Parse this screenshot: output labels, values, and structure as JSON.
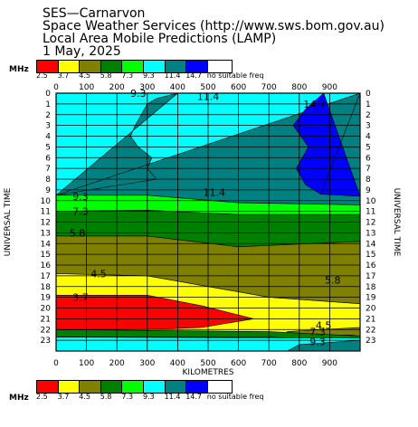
{
  "header": {
    "line1": "SES—Carnarvon",
    "line2": "Space Weather Services (http://www.sws.bom.gov.au)",
    "line3": "Local Area Mobile Predictions (LAMP)",
    "line4": "1 May, 2025"
  },
  "legend": {
    "unit": "MHz",
    "colors": [
      "#ff0000",
      "#ffff00",
      "#808000",
      "#008000",
      "#00ff00",
      "#00ffff",
      "#008080",
      "#0000ff",
      "#ffffff"
    ],
    "labels": [
      "2.5",
      "3.7",
      "4.5",
      "5.8",
      "7.3",
      "9.3",
      "11.4",
      "14.7",
      "no suitable freq"
    ]
  },
  "chart_data": {
    "type": "heatmap",
    "xlabel": "KILOMETRES",
    "ylabel": "UNIVERSAL TIME",
    "xlim": [
      0,
      1000
    ],
    "ylim": [
      0,
      24
    ],
    "x_ticks": [
      0,
      100,
      200,
      300,
      400,
      500,
      600,
      700,
      800,
      900
    ],
    "y_ticks": [
      0,
      1,
      2,
      3,
      4,
      5,
      6,
      7,
      8,
      9,
      10,
      11,
      12,
      13,
      14,
      15,
      16,
      17,
      18,
      19,
      20,
      21,
      22,
      23
    ],
    "grid": true,
    "bands": [
      {
        "level": "9.3",
        "color": "#00ffff",
        "top": [
          [
            0,
            0
          ],
          [
            1000,
            0
          ]
        ],
        "bottom": [
          [
            0,
            24
          ],
          [
            1000,
            24
          ]
        ]
      },
      {
        "level": "11.4",
        "color": "#008080",
        "top": [
          [
            400,
            0
          ],
          [
            1000,
            0
          ]
        ],
        "bottom": [
          [
            0,
            9.5
          ],
          [
            300,
            9.5
          ],
          [
            600,
            10.2
          ],
          [
            1000,
            10.4
          ]
        ],
        "left": [
          [
            400,
            0
          ],
          [
            330,
            0.5
          ],
          [
            300,
            1
          ],
          [
            260,
            3
          ],
          [
            245,
            4
          ],
          [
            270,
            5
          ],
          [
            315,
            6
          ],
          [
            300,
            7
          ],
          [
            330,
            8
          ],
          [
            0,
            9.5
          ]
        ]
      },
      {
        "level": "14.7",
        "color": "#0000ff",
        "top": [
          [
            880,
            0
          ],
          [
            1000,
            0
          ]
        ],
        "bottom": [
          [
            1000,
            9.6
          ],
          [
            870,
            9.4
          ]
        ],
        "left": [
          [
            880,
            0
          ],
          [
            820,
            1.5
          ],
          [
            780,
            3
          ],
          [
            830,
            5
          ],
          [
            790,
            7
          ],
          [
            820,
            8.5
          ],
          [
            870,
            9.4
          ]
        ]
      },
      {
        "level": "7.3",
        "color": "#00ff00",
        "top": [
          [
            0,
            9.5
          ],
          [
            300,
            9.5
          ],
          [
            600,
            10.2
          ],
          [
            1000,
            10.4
          ]
        ],
        "bottom": [
          [
            0,
            11
          ],
          [
            300,
            10.9
          ],
          [
            600,
            11.3
          ],
          [
            1000,
            11.3
          ]
        ]
      },
      {
        "level": "5.8",
        "color": "#008000",
        "top": [
          [
            0,
            11
          ],
          [
            300,
            10.9
          ],
          [
            600,
            11.3
          ],
          [
            1000,
            11.3
          ]
        ],
        "bottom": [
          [
            0,
            13.3
          ],
          [
            300,
            13.3
          ],
          [
            600,
            14.3
          ],
          [
            1000,
            13.8
          ]
        ]
      },
      {
        "level": "4.5",
        "color": "#808000",
        "top": [
          [
            0,
            13.3
          ],
          [
            300,
            13.3
          ],
          [
            600,
            14.3
          ],
          [
            1000,
            13.8
          ]
        ],
        "bottom": [
          [
            0,
            16.8
          ],
          [
            300,
            17
          ],
          [
            700,
            19
          ],
          [
            1000,
            19.6
          ]
        ]
      },
      {
        "level": "3.7",
        "color": "#ffff00",
        "top": [
          [
            0,
            16.8
          ],
          [
            300,
            17
          ],
          [
            700,
            19
          ],
          [
            1000,
            19.6
          ]
        ],
        "bottom": [
          [
            0,
            24
          ],
          [
            1000,
            24
          ]
        ]
      },
      {
        "level": "2.5",
        "color": "#ff0000",
        "top": [
          [
            0,
            18.8
          ],
          [
            300,
            18.8
          ],
          [
            480,
            19.8
          ],
          [
            650,
            21
          ]
        ],
        "bottom": [
          [
            0,
            22
          ],
          [
            300,
            22
          ],
          [
            480,
            21.8
          ],
          [
            650,
            21
          ]
        ]
      },
      {
        "level": "4.5",
        "color": "#808000",
        "top": [
          [
            760,
            22.2
          ],
          [
            1000,
            21.8
          ]
        ],
        "bottom": [
          [
            750,
            22.6
          ],
          [
            1000,
            22.5
          ]
        ]
      },
      {
        "level": "5.8",
        "color": "#008000",
        "top": [
          [
            0,
            22
          ],
          [
            700,
            22.2
          ],
          [
            1000,
            22.6
          ]
        ],
        "bottom": [
          [
            0,
            22.7
          ],
          [
            700,
            22.7
          ],
          [
            1000,
            23.2
          ]
        ]
      },
      {
        "level": "9.3",
        "color": "#00ffff",
        "top": [
          [
            0,
            22.7
          ],
          [
            1000,
            22.8
          ]
        ],
        "bottom": [
          [
            0,
            24
          ],
          [
            1000,
            24
          ]
        ]
      },
      {
        "level": "11.4",
        "color": "#008080",
        "top": [
          [
            800,
            23.4
          ],
          [
            1000,
            23
          ]
        ],
        "bottom": [
          [
            760,
            24
          ],
          [
            1000,
            24
          ]
        ]
      }
    ],
    "contour_labels": [
      {
        "text": "9.3",
        "x": 270,
        "y": 0
      },
      {
        "text": "11.4",
        "x": 500,
        "y": 0.3
      },
      {
        "text": "14.7",
        "x": 850,
        "y": 1
      },
      {
        "text": "11.4",
        "x": 520,
        "y": 9.2
      },
      {
        "text": "9.3",
        "x": 80,
        "y": 9.6
      },
      {
        "text": "7.3",
        "x": 80,
        "y": 11
      },
      {
        "text": "5.8",
        "x": 70,
        "y": 13
      },
      {
        "text": "4.5",
        "x": 140,
        "y": 16.8
      },
      {
        "text": "5.8",
        "x": 910,
        "y": 17.4
      },
      {
        "text": "3.7",
        "x": 80,
        "y": 19
      },
      {
        "text": "4.5",
        "x": 880,
        "y": 21.6
      },
      {
        "text": "7.3",
        "x": 860,
        "y": 22.2
      },
      {
        "text": "9.3",
        "x": 860,
        "y": 23.1
      }
    ]
  }
}
